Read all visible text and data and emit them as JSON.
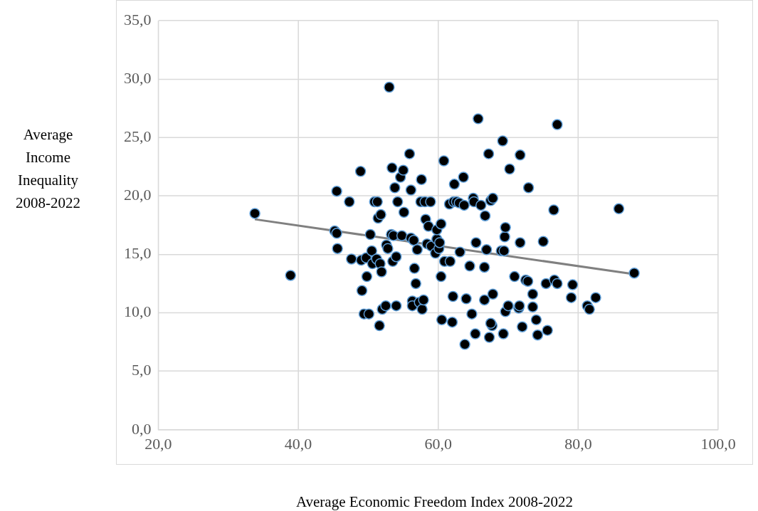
{
  "chart_data": {
    "type": "scatter",
    "xlabel": "Average Economic Freedom Index 2008-2022",
    "ylabel": "Average Income Inequality 2008-2022",
    "xlim": [
      20,
      100
    ],
    "xticks": [
      {
        "value": 20,
        "label": "20,0"
      },
      {
        "value": 40,
        "label": "40,0"
      },
      {
        "value": 60,
        "label": "60,0"
      },
      {
        "value": 80,
        "label": "80,0"
      },
      {
        "value": 100,
        "label": "100,0"
      }
    ],
    "ylim": [
      0,
      35
    ],
    "yticks": [
      {
        "value": 0,
        "label": "0,0"
      },
      {
        "value": 5,
        "label": "5,0"
      },
      {
        "value": 10,
        "label": "10,0"
      },
      {
        "value": 15,
        "label": "15,0"
      },
      {
        "value": 20,
        "label": "20,0"
      },
      {
        "value": 25,
        "label": "25,0"
      },
      {
        "value": 30,
        "label": "30,0"
      },
      {
        "value": 35,
        "label": "35,0"
      }
    ],
    "grid": true,
    "legend": false,
    "series": [
      {
        "color": "#000000",
        "marker": "circle",
        "x": [
          33.8,
          38.9,
          45.2,
          45.5,
          45.5,
          45.6,
          47.3,
          47.6,
          48.9,
          49.1,
          49.0,
          49.4,
          49.7,
          49.8,
          50.1,
          50.3,
          50.5,
          50.6,
          50.9,
          51.2,
          51.3,
          51.4,
          51.6,
          51.7,
          51.8,
          51.9,
          52.0,
          52.5,
          52.6,
          52.8,
          53.0,
          53.3,
          53.4,
          53.5,
          53.6,
          53.8,
          54.0,
          54.0,
          54.2,
          54.6,
          54.8,
          55.0,
          55.1,
          55.9,
          56.1,
          56.1,
          56.3,
          56.3,
          56.5,
          56.6,
          56.8,
          57.0,
          57.3,
          57.5,
          57.6,
          57.7,
          57.9,
          58.1,
          58.2,
          58.4,
          58.6,
          58.9,
          59.0,
          59.6,
          59.8,
          59.8,
          60.1,
          60.2,
          60.4,
          60.4,
          60.5,
          60.8,
          60.9,
          61.6,
          61.7,
          62.0,
          62.1,
          62.2,
          62.3,
          62.6,
          63.0,
          63.1,
          63.6,
          63.7,
          63.8,
          64.0,
          64.5,
          65.0,
          65.1,
          65.3,
          64.8,
          65.4,
          65.7,
          66.1,
          66.6,
          66.7,
          66.9,
          66.6,
          67.2,
          67.3,
          67.5,
          67.7,
          67.5,
          67.8,
          67.8,
          69.0,
          69.2,
          69.4,
          69.5,
          69.6,
          69.6,
          69.3,
          70.0,
          70.2,
          70.9,
          71.5,
          71.6,
          71.7,
          71.7,
          72.0,
          72.5,
          72.8,
          72.9,
          73.5,
          73.5,
          74.0,
          74.2,
          75.0,
          75.4,
          75.6,
          76.5,
          76.6,
          77.0,
          77.0,
          79.0,
          79.2,
          81.3,
          81.6,
          82.5,
          85.8,
          88.0
        ],
        "values": [
          18.5,
          13.2,
          17.0,
          16.8,
          20.4,
          15.5,
          19.5,
          14.6,
          22.1,
          11.9,
          14.5,
          9.9,
          14.7,
          13.1,
          9.9,
          16.7,
          15.3,
          14.2,
          19.5,
          14.6,
          19.5,
          18.1,
          8.9,
          14.2,
          18.4,
          13.5,
          10.3,
          10.6,
          15.8,
          15.5,
          29.3,
          16.7,
          22.4,
          14.4,
          16.6,
          20.7,
          14.8,
          10.6,
          19.5,
          21.6,
          16.6,
          22.2,
          18.6,
          23.6,
          20.5,
          16.4,
          11.0,
          10.6,
          16.2,
          13.8,
          12.5,
          15.4,
          10.9,
          19.5,
          21.4,
          10.3,
          11.1,
          19.5,
          18.0,
          15.9,
          17.4,
          19.5,
          15.7,
          15.1,
          16.3,
          17.1,
          15.5,
          16.0,
          17.6,
          13.1,
          9.4,
          23.0,
          14.4,
          19.3,
          14.4,
          9.2,
          11.4,
          19.5,
          21.0,
          19.5,
          19.4,
          15.2,
          21.6,
          19.2,
          7.3,
          11.2,
          14.0,
          19.8,
          19.5,
          8.2,
          9.9,
          16.0,
          26.6,
          19.2,
          13.9,
          18.3,
          15.4,
          11.1,
          23.6,
          7.9,
          19.6,
          8.9,
          9.1,
          19.8,
          11.6,
          15.3,
          24.7,
          15.3,
          16.5,
          17.3,
          10.1,
          8.2,
          10.6,
          22.3,
          13.1,
          10.4,
          10.6,
          23.5,
          16.0,
          8.8,
          12.8,
          12.7,
          20.7,
          11.6,
          10.5,
          9.4,
          8.1,
          16.1,
          12.5,
          8.5,
          18.8,
          12.8,
          12.5,
          26.1,
          11.3,
          12.4,
          10.6,
          10.3,
          11.3,
          18.9,
          13.4
        ]
      },
      {
        "type": "line",
        "color": "#808080",
        "x": [
          33.8,
          88.0
        ],
        "values": [
          18.0,
          13.3
        ]
      }
    ]
  }
}
